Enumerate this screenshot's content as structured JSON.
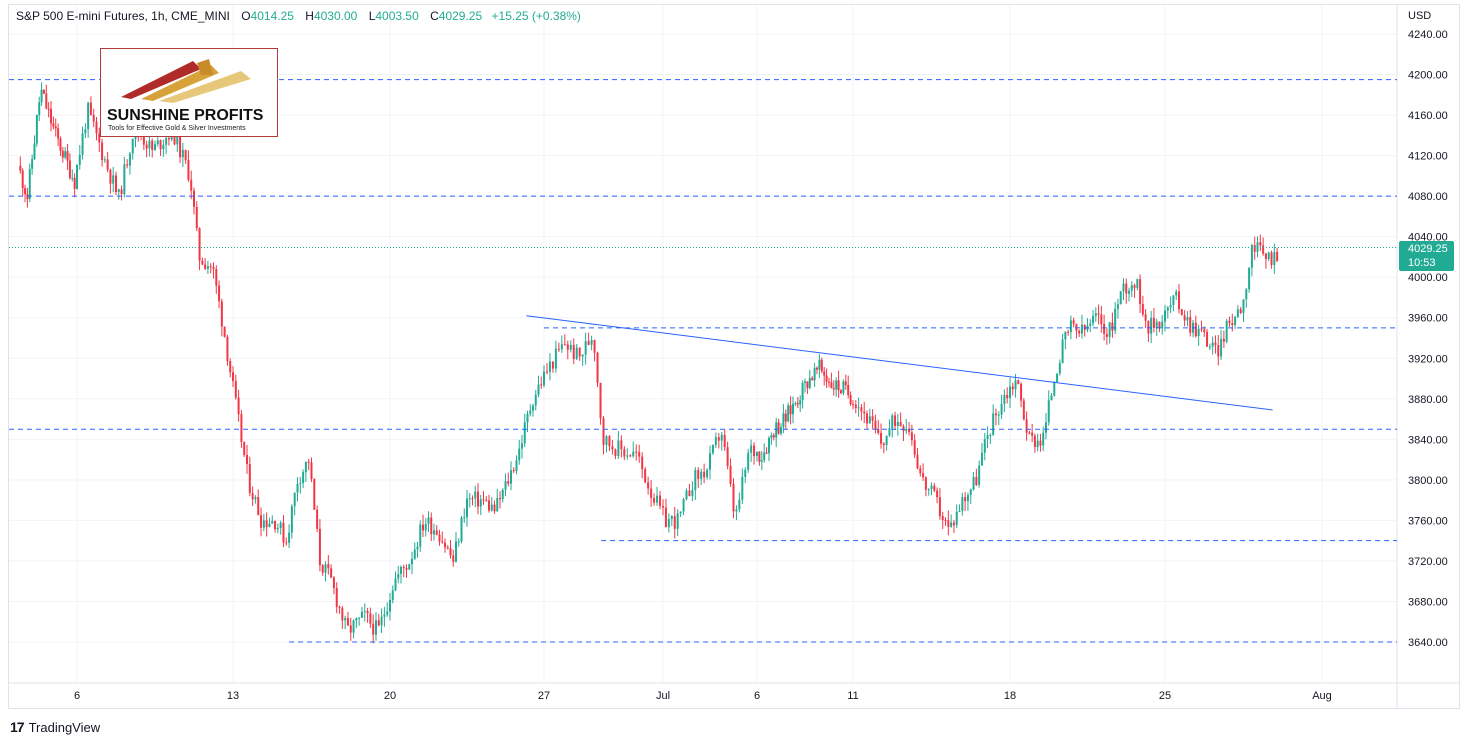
{
  "header": {
    "symbol": "S&P 500 E-mini Futures, 1h, CME_MINI",
    "open_label": "O",
    "open": "4014.25",
    "high_label": "H",
    "high": "4030.00",
    "low_label": "L",
    "low": "4003.50",
    "close_label": "C",
    "close": "4029.25",
    "change": "+15.25 (+0.38%)"
  },
  "axis": {
    "currency": "USD",
    "current_price": "4029.25",
    "countdown": "10:53"
  },
  "logo": {
    "title": "SUNSHINE PROFITS",
    "tagline": "Tools for Effective Gold & Silver Investments"
  },
  "footer": {
    "brand": "TradingView",
    "brand_mark": "17"
  },
  "colors": {
    "up": "#22ab94",
    "down": "#f23645",
    "level": "#2962ff",
    "trend": "#2962ff",
    "grid": "#f0f3fa",
    "axis_text": "#131722"
  },
  "chart_data": {
    "type": "candlestick",
    "title": "S&P 500 E-mini Futures, 1h, CME_MINI",
    "ylabel": "USD",
    "ylim": [
      3600,
      4260
    ],
    "y_ticks": [
      3640,
      3680,
      3720,
      3760,
      3800,
      3840,
      3880,
      3920,
      3960,
      4000,
      4040,
      4080,
      4120,
      4160,
      4200,
      4240
    ],
    "x_range_days": [
      2.4,
      39.3
    ],
    "x_ticks": [
      {
        "day": 6,
        "label": "6"
      },
      {
        "day": 13,
        "label": "13"
      },
      {
        "day": 20,
        "label": "20"
      },
      {
        "day": 27,
        "label": "27"
      },
      {
        "day": 32,
        "label": "Jul"
      },
      {
        "day": 36,
        "label": "6"
      },
      {
        "day": 41,
        "label": "11"
      },
      {
        "day": 48,
        "label": "18"
      },
      {
        "day": 55,
        "label": "25"
      },
      {
        "day": 62,
        "label": "Aug"
      }
    ],
    "x_tick_px_note_days": "day index since June 1; axis compressed to trading sessions",
    "path": [
      [
        3.0,
        4110
      ],
      [
        3.5,
        4080
      ],
      [
        4.2,
        4185
      ],
      [
        5.0,
        4140
      ],
      [
        6.0,
        4095
      ],
      [
        6.6,
        4165
      ],
      [
        7.3,
        4120
      ],
      [
        8.0,
        4078
      ],
      [
        8.7,
        4150
      ],
      [
        9.5,
        4125
      ],
      [
        10.4,
        4145
      ],
      [
        11.2,
        4100
      ],
      [
        11.6,
        4020
      ],
      [
        12.2,
        4010
      ],
      [
        12.7,
        3950
      ],
      [
        13.2,
        3880
      ],
      [
        13.8,
        3800
      ],
      [
        14.4,
        3760
      ],
      [
        15.0,
        3760
      ],
      [
        15.5,
        3740
      ],
      [
        16.0,
        3800
      ],
      [
        16.5,
        3820
      ],
      [
        17.0,
        3720
      ],
      [
        17.5,
        3700
      ],
      [
        18.2,
        3650
      ],
      [
        19.0,
        3665
      ],
      [
        19.6,
        3650
      ],
      [
        20.3,
        3700
      ],
      [
        21.0,
        3720
      ],
      [
        21.7,
        3760
      ],
      [
        22.3,
        3750
      ],
      [
        23.0,
        3720
      ],
      [
        23.6,
        3780
      ],
      [
        24.3,
        3780
      ],
      [
        24.9,
        3770
      ],
      [
        25.5,
        3800
      ],
      [
        26.0,
        3830
      ],
      [
        26.6,
        3880
      ],
      [
        27.3,
        3910
      ],
      [
        28.0,
        3935
      ],
      [
        28.6,
        3920
      ],
      [
        29.2,
        3945
      ],
      [
        29.6,
        3840
      ],
      [
        30.3,
        3830
      ],
      [
        31.0,
        3825
      ],
      [
        31.6,
        3790
      ],
      [
        32.2,
        3760
      ],
      [
        32.8,
        3760
      ],
      [
        33.4,
        3800
      ],
      [
        34.0,
        3810
      ],
      [
        34.6,
        3850
      ],
      [
        35.2,
        3760
      ],
      [
        35.8,
        3830
      ],
      [
        36.4,
        3825
      ],
      [
        37.0,
        3850
      ],
      [
        37.6,
        3860
      ],
      [
        38.2,
        3880
      ],
      [
        38.8,
        3900
      ],
      [
        39.4,
        3910
      ],
      [
        40.0,
        3895
      ],
      [
        40.6,
        3890
      ],
      [
        41.2,
        3880
      ],
      [
        41.8,
        3860
      ],
      [
        42.4,
        3835
      ],
      [
        43.0,
        3860
      ],
      [
        43.6,
        3855
      ],
      [
        44.2,
        3800
      ],
      [
        44.8,
        3780
      ],
      [
        45.4,
        3750
      ],
      [
        46.0,
        3780
      ],
      [
        46.6,
        3800
      ],
      [
        47.2,
        3850
      ],
      [
        47.8,
        3880
      ],
      [
        48.4,
        3900
      ],
      [
        49.0,
        3840
      ],
      [
        49.6,
        3840
      ],
      [
        50.2,
        3910
      ],
      [
        50.8,
        3950
      ],
      [
        51.4,
        3945
      ],
      [
        52.0,
        3960
      ],
      [
        52.6,
        3945
      ],
      [
        53.2,
        3990
      ],
      [
        53.8,
        3995
      ],
      [
        54.4,
        3950
      ],
      [
        55.0,
        3960
      ],
      [
        55.6,
        3980
      ],
      [
        56.2,
        3955
      ],
      [
        56.8,
        3945
      ],
      [
        57.4,
        3925
      ],
      [
        58.0,
        3955
      ],
      [
        58.6,
        3975
      ],
      [
        59.0,
        4030
      ],
      [
        59.6,
        4020
      ],
      [
        60.0,
        4020
      ]
    ],
    "levels": [
      {
        "price": 4195,
        "from_day": 2.4,
        "to_day": 66
      },
      {
        "price": 4080,
        "from_day": 2.4,
        "to_day": 66
      },
      {
        "price": 3950,
        "from_day": 27.0,
        "to_day": 66
      },
      {
        "price": 3850,
        "from_day": 2.4,
        "to_day": 66
      },
      {
        "price": 3740,
        "from_day": 29.4,
        "to_day": 66
      },
      {
        "price": 3640,
        "from_day": 15.5,
        "to_day": 66
      }
    ],
    "trendline": {
      "from": [
        26.2,
        3962
      ],
      "to": [
        59.8,
        3869
      ]
    },
    "last_price": 4029.25
  }
}
